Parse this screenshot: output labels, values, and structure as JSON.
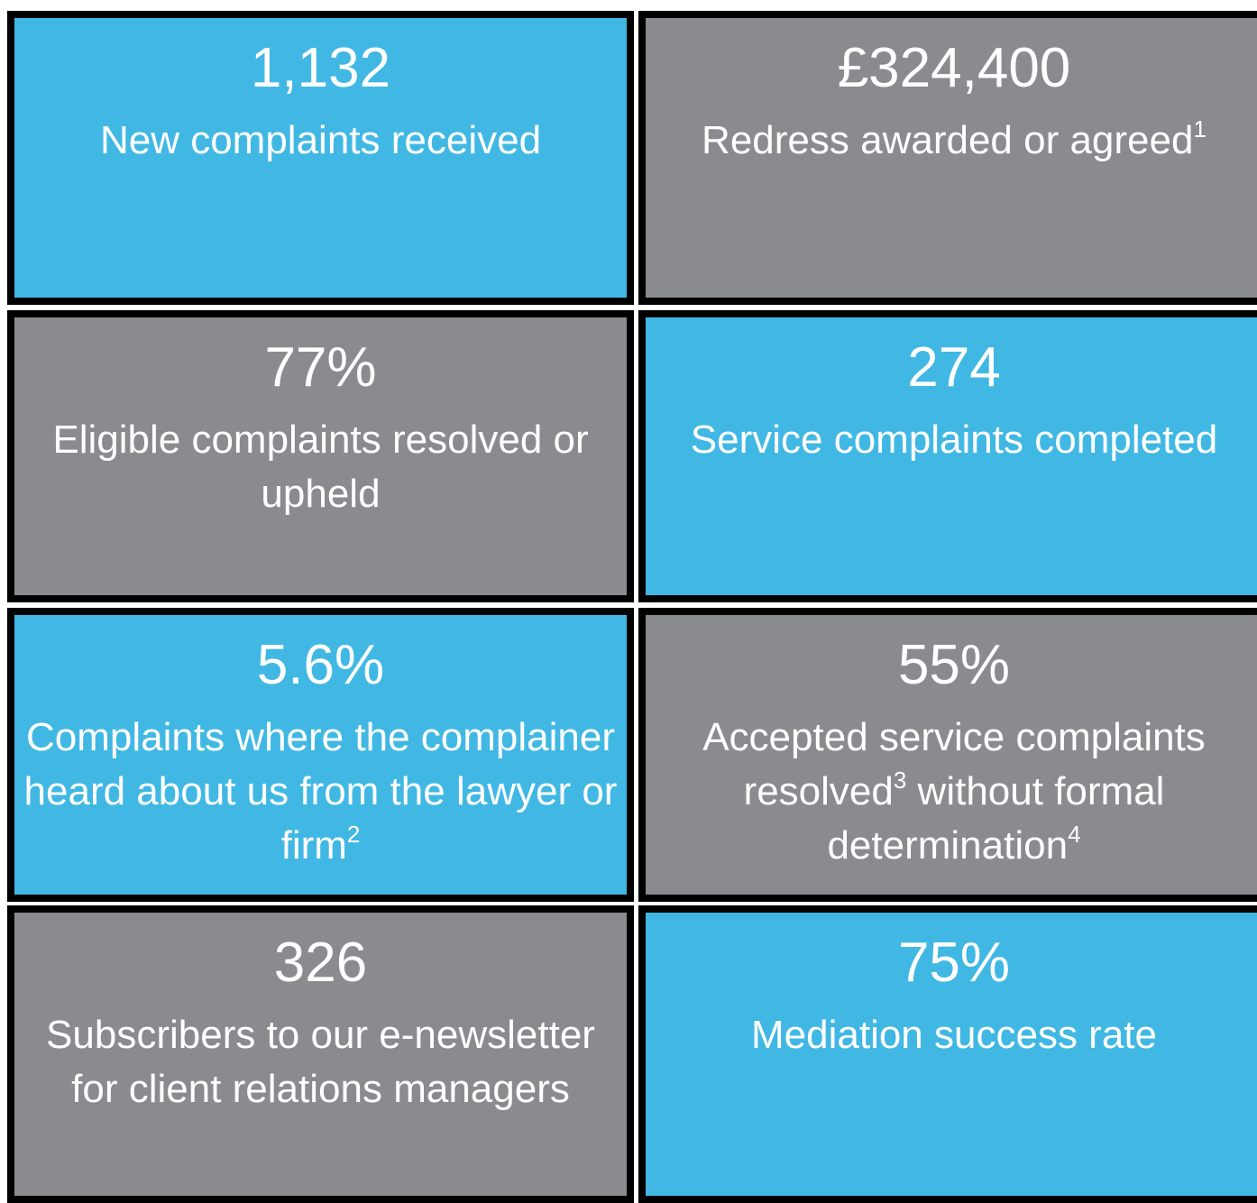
{
  "tiles": [
    {
      "value": "1,132",
      "color": "#41b8e4",
      "label": [
        {
          "text": "New complaints received"
        }
      ]
    },
    {
      "value": "£324,400",
      "color": "#8a8b8f",
      "label": [
        {
          "text": "Redress awarded or agreed"
        },
        {
          "sup": "1"
        }
      ]
    },
    {
      "value": "77%",
      "color": "#8a8b8f",
      "label": [
        {
          "text": "Eligible complaints resolved or upheld"
        }
      ]
    },
    {
      "value": "274",
      "color": "#41b8e4",
      "label": [
        {
          "text": "Service complaints completed"
        }
      ]
    },
    {
      "value": "5.6%",
      "color": "#41b8e4",
      "label": [
        {
          "text": "Complaints where the complainer heard about us from the lawyer or firm"
        },
        {
          "sup": "2"
        }
      ]
    },
    {
      "value": "55%",
      "color": "#8a8b8f",
      "label": [
        {
          "text": "Accepted service complaints resolved"
        },
        {
          "sup": "3"
        },
        {
          "text": " without formal determination"
        },
        {
          "sup": "4"
        }
      ]
    },
    {
      "value": "326",
      "color": "#8a8b8f",
      "label": [
        {
          "text": "Subscribers to our e-newsletter for client relations managers"
        }
      ]
    },
    {
      "value": "75%",
      "color": "#41b8e4",
      "label": [
        {
          "text": "Mediation success rate"
        }
      ]
    }
  ]
}
